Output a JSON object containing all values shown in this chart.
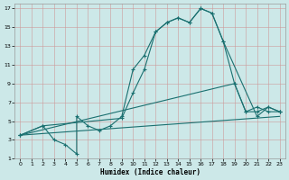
{
  "xlabel": "Humidex (Indice chaleur)",
  "bg_color": "#cce8e8",
  "grid_color": "#aacccc",
  "line_color": "#1a7070",
  "xlim": [
    -0.5,
    23.5
  ],
  "ylim": [
    1,
    17.5
  ],
  "xticks": [
    0,
    1,
    2,
    3,
    4,
    5,
    6,
    7,
    8,
    9,
    10,
    11,
    12,
    13,
    14,
    15,
    16,
    17,
    18,
    19,
    20,
    21,
    22,
    23
  ],
  "yticks": [
    1,
    3,
    5,
    7,
    9,
    11,
    13,
    15,
    17
  ],
  "line1_x": [
    0,
    2,
    3,
    4,
    5,
    5,
    6,
    7,
    8,
    9,
    10,
    11,
    12,
    13,
    14,
    15,
    16,
    17,
    18,
    19,
    20,
    21,
    22,
    23
  ],
  "line1_y": [
    3.5,
    4.5,
    3.0,
    2.5,
    1.5,
    5.5,
    4.5,
    4.0,
    4.5,
    5.5,
    10.5,
    12.0,
    14.5,
    15.5,
    16.0,
    15.5,
    17.0,
    16.5,
    13.5,
    9.0,
    6.0,
    6.5,
    6.0,
    6.0
  ],
  "line2_x": [
    0,
    2,
    9,
    10,
    11,
    12,
    13,
    14,
    15,
    16,
    17,
    18,
    21,
    22,
    23
  ],
  "line2_y": [
    3.5,
    4.5,
    5.3,
    8.0,
    10.5,
    14.5,
    15.5,
    16.0,
    15.5,
    17.0,
    16.5,
    13.5,
    5.5,
    6.5,
    6.0
  ],
  "line3_x": [
    0,
    19,
    20,
    21,
    22,
    23
  ],
  "line3_y": [
    3.5,
    9.0,
    6.0,
    6.0,
    6.5,
    6.0
  ],
  "line4_x": [
    0,
    23
  ],
  "line4_y": [
    3.5,
    5.5
  ]
}
